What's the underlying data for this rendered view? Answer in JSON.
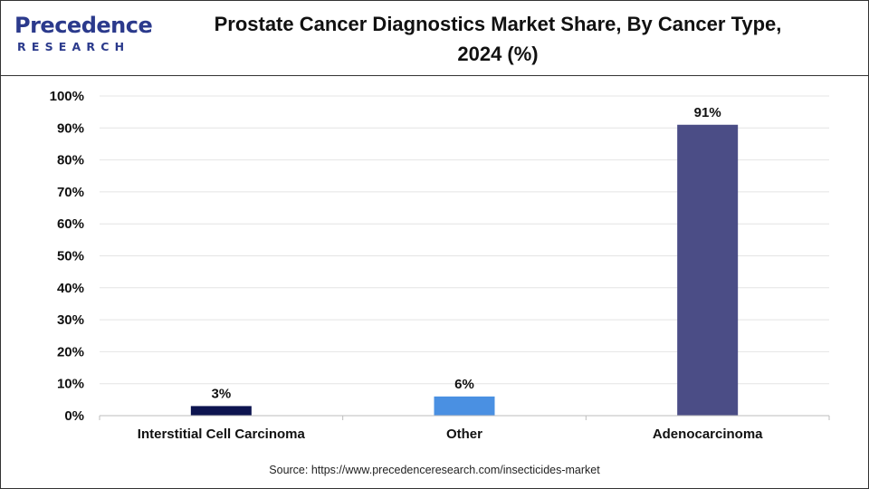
{
  "header": {
    "logo_word": "Precedence",
    "logo_sub": "RESEARCH",
    "title_line1": "Prostate Cancer Diagnostics Market Share, By Cancer Type,",
    "title_line2": "2024 (%)"
  },
  "chart_data": {
    "type": "bar",
    "title": "Prostate Cancer Diagnostics Market Share, By Cancer Type, 2024 (%)",
    "categories": [
      "Interstitial Cell Carcinoma",
      "Other",
      "Adenocarcinoma"
    ],
    "values": [
      3,
      6,
      91
    ],
    "value_labels": [
      "3%",
      "6%",
      "91%"
    ],
    "colors": [
      "#0d1450",
      "#4a90e2",
      "#4b4d86"
    ],
    "y_ticks": [
      "0%",
      "10%",
      "20%",
      "30%",
      "40%",
      "50%",
      "60%",
      "70%",
      "80%",
      "90%",
      "100%"
    ],
    "ylim": [
      0,
      100
    ],
    "grid": true,
    "legend": "none"
  },
  "footer": {
    "source": "Source: https://www.precedenceresearch.com/insecticides-market"
  }
}
